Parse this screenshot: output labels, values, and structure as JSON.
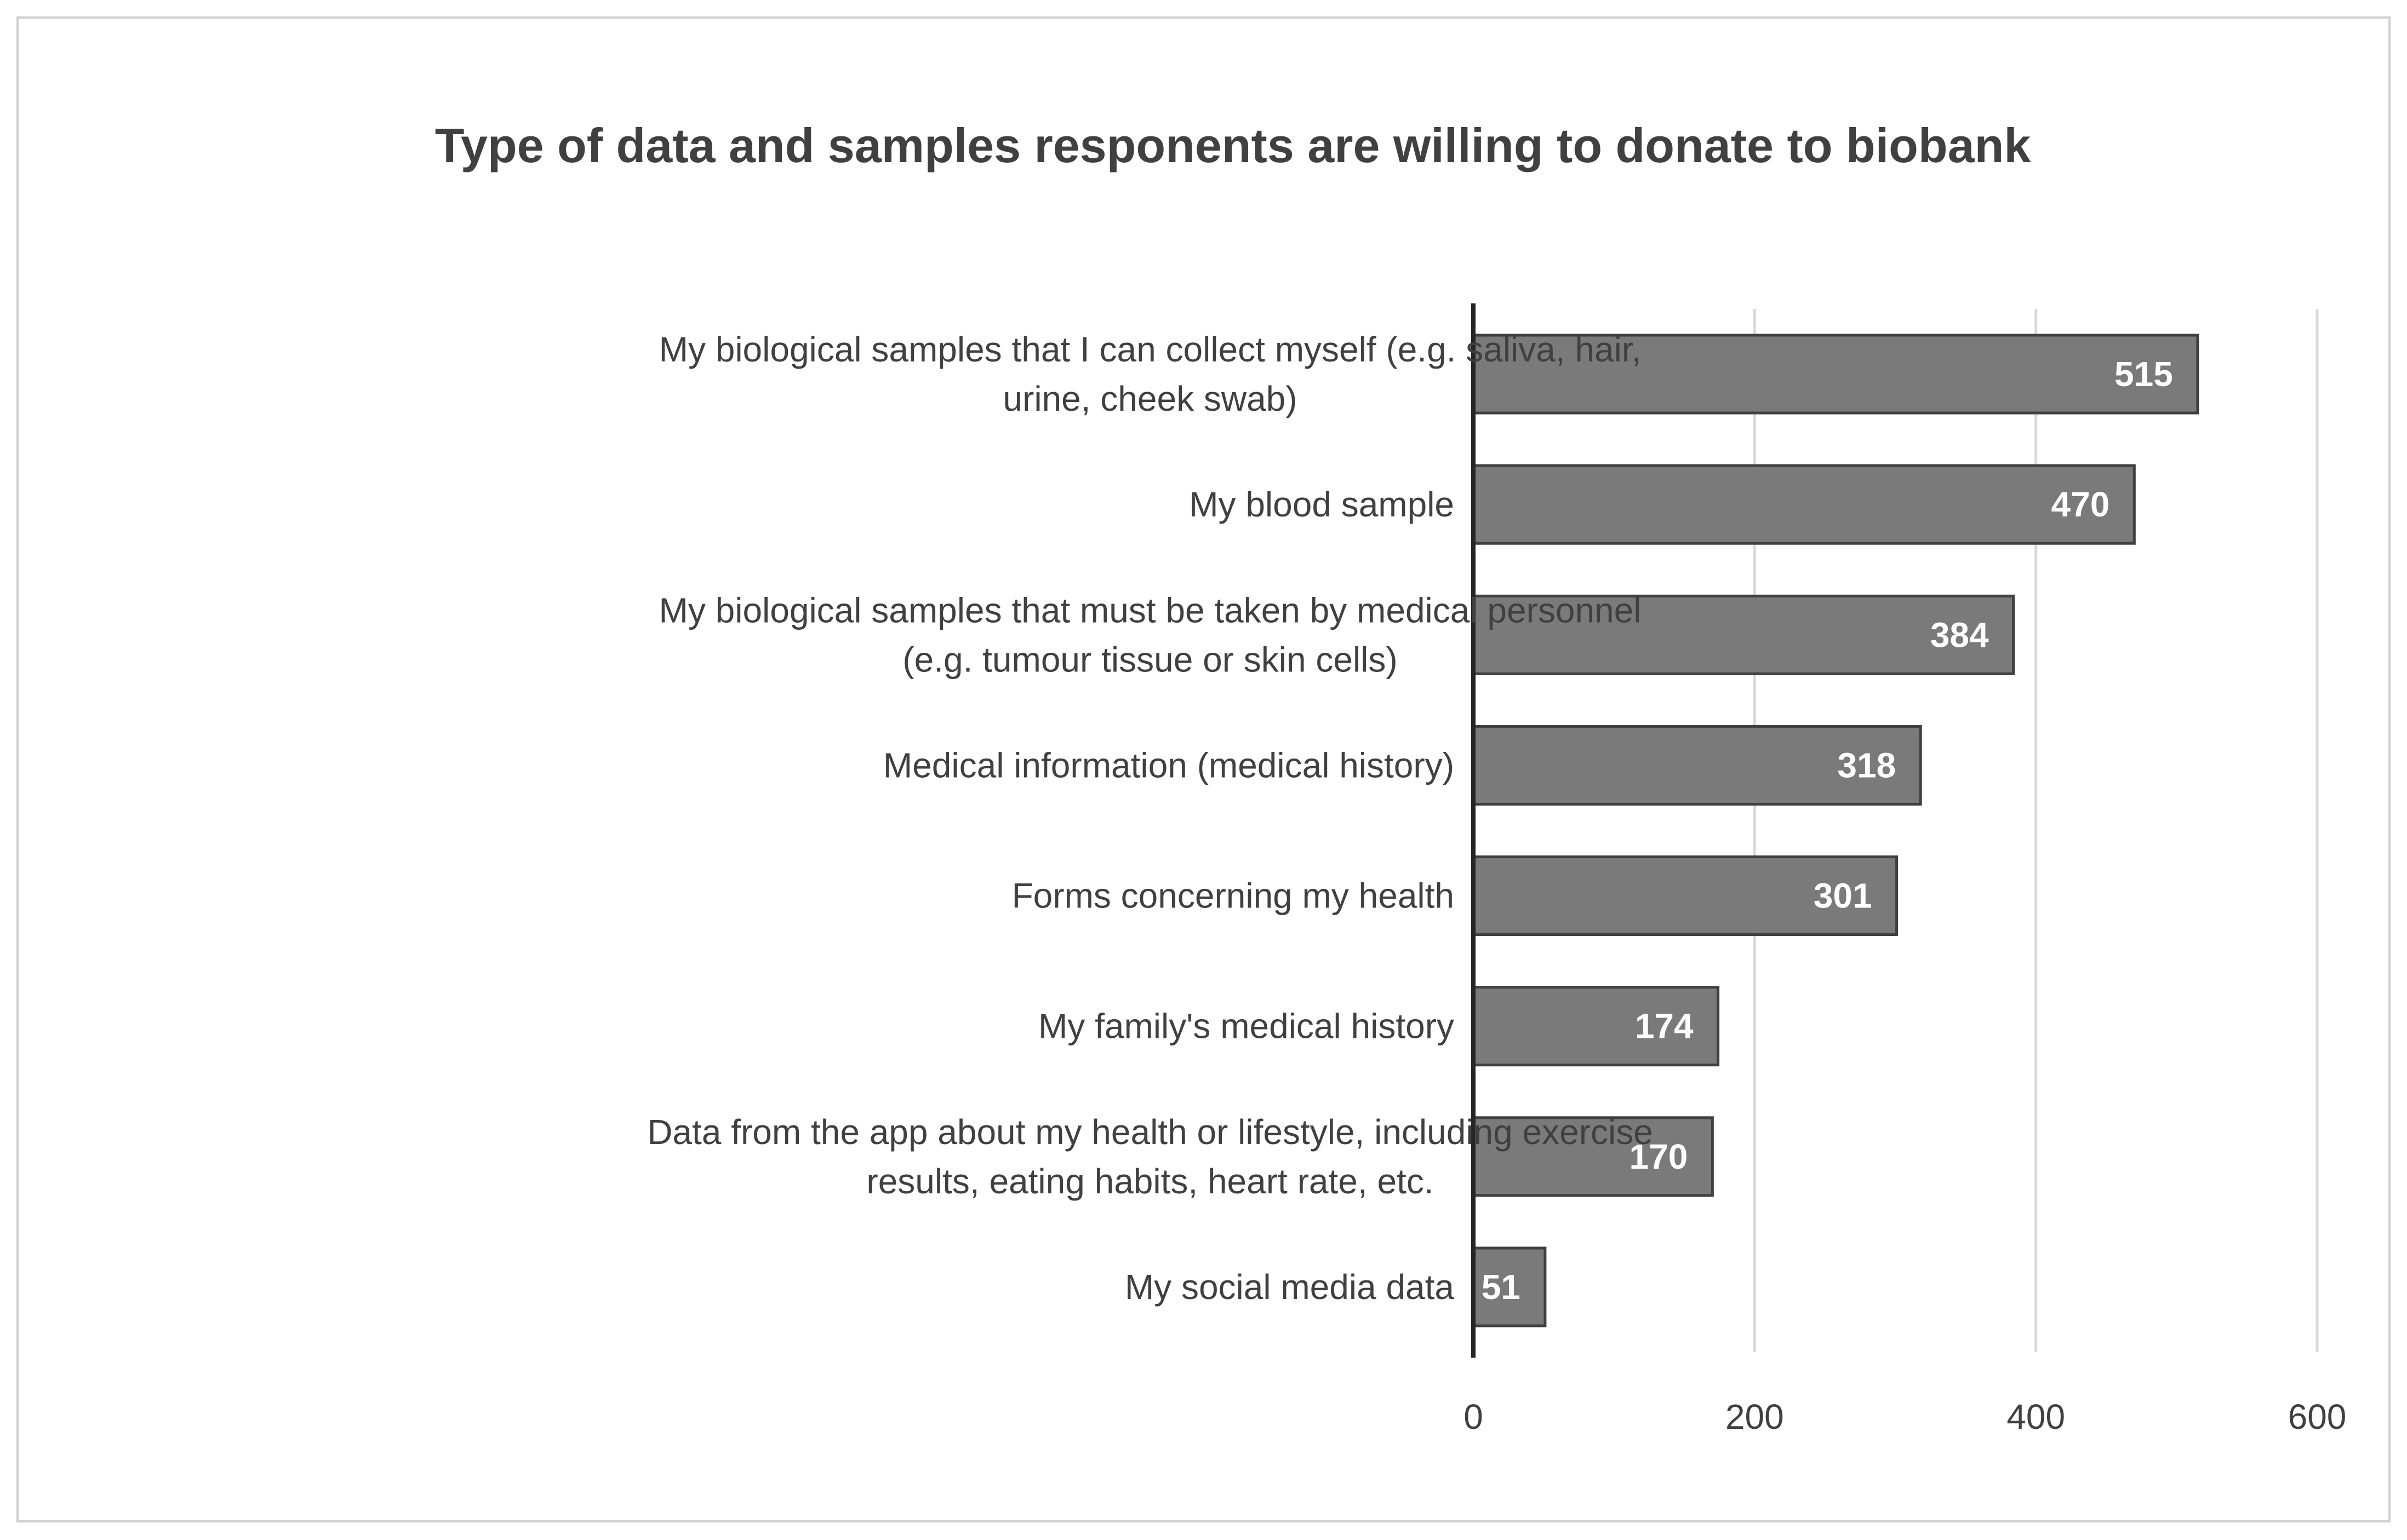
{
  "chart_data": {
    "type": "bar",
    "orientation": "horizontal",
    "title": "Type of data and samples responents are willing to donate to biobank",
    "categories": [
      [
        "My biological samples that I can collect myself (e.g. saliva, hair,",
        "urine, cheek swab)"
      ],
      [
        "My blood sample"
      ],
      [
        "My biological samples that must be taken by medical personnel",
        "(e.g. tumour tissue or skin cells)"
      ],
      [
        "Medical information (medical history)"
      ],
      [
        "Forms concerning my health"
      ],
      [
        "My family's medical history"
      ],
      [
        "Data from the app about my health or lifestyle, including exercise",
        "results, eating habits, heart rate, etc."
      ],
      [
        "My social media data"
      ]
    ],
    "values": [
      515,
      470,
      384,
      318,
      301,
      174,
      170,
      51
    ],
    "xlim": [
      0,
      600
    ],
    "xticks": [
      0,
      200,
      400,
      600
    ],
    "grid": true,
    "data_labels": true,
    "colors": {
      "bar_fill": "#7a7a7a",
      "bar_stroke": "#404040",
      "grid": "#d9d9d9",
      "axis": "#262626",
      "text": "#404040",
      "value_text": "#ffffff"
    }
  }
}
